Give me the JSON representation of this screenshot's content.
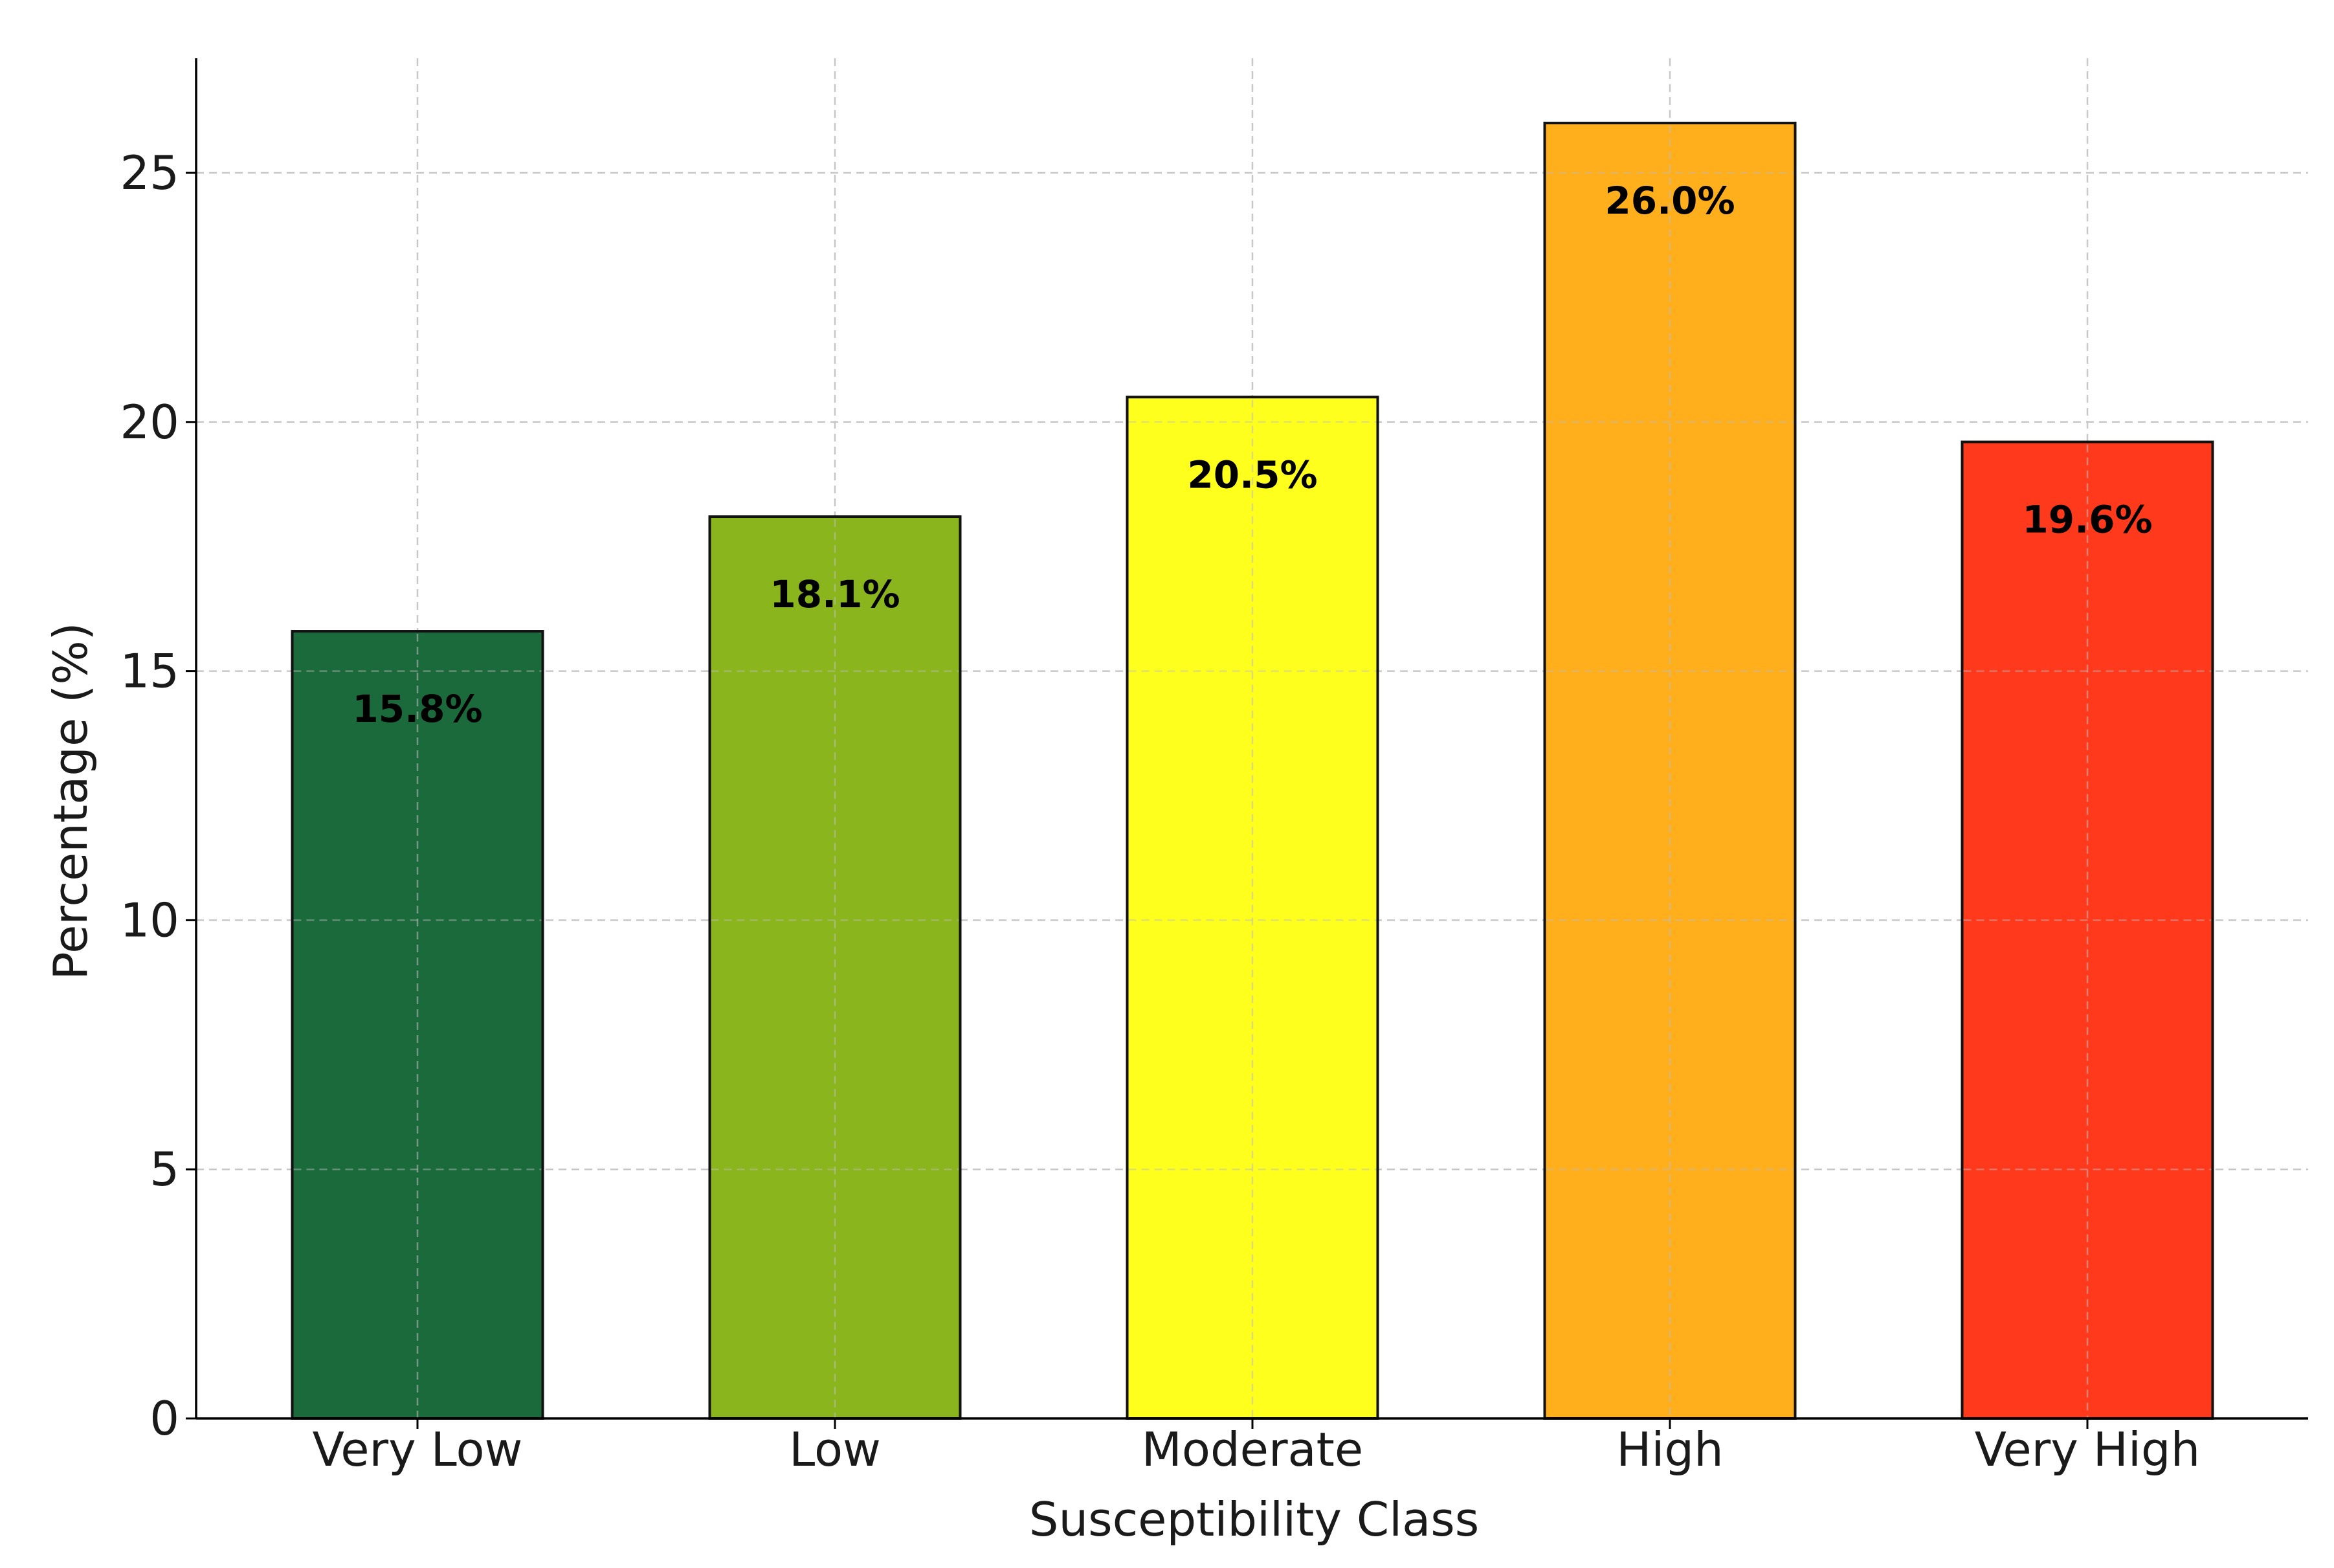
{
  "chart_data": {
    "type": "bar",
    "title": "",
    "xlabel": "Susceptibility Class",
    "ylabel": "Percentage (%)",
    "categories": [
      "Very Low",
      "Low",
      "Moderate",
      "High",
      "Very High"
    ],
    "values": [
      15.8,
      18.1,
      20.5,
      26.0,
      19.6
    ],
    "value_labels": [
      "15.8%",
      "18.1%",
      "20.5%",
      "26.0%",
      "19.6%"
    ],
    "colors": [
      "#1b6a3c",
      "#8ab51c",
      "#ffff1e",
      "#ffae1c",
      "#ff3a1c"
    ],
    "ylim": [
      0,
      27.3
    ],
    "yticks": [
      0,
      5,
      10,
      15,
      20,
      25
    ],
    "ytick_labels": [
      "0",
      "5",
      "10",
      "15",
      "20",
      "25"
    ],
    "grid": true,
    "legend": "none"
  }
}
